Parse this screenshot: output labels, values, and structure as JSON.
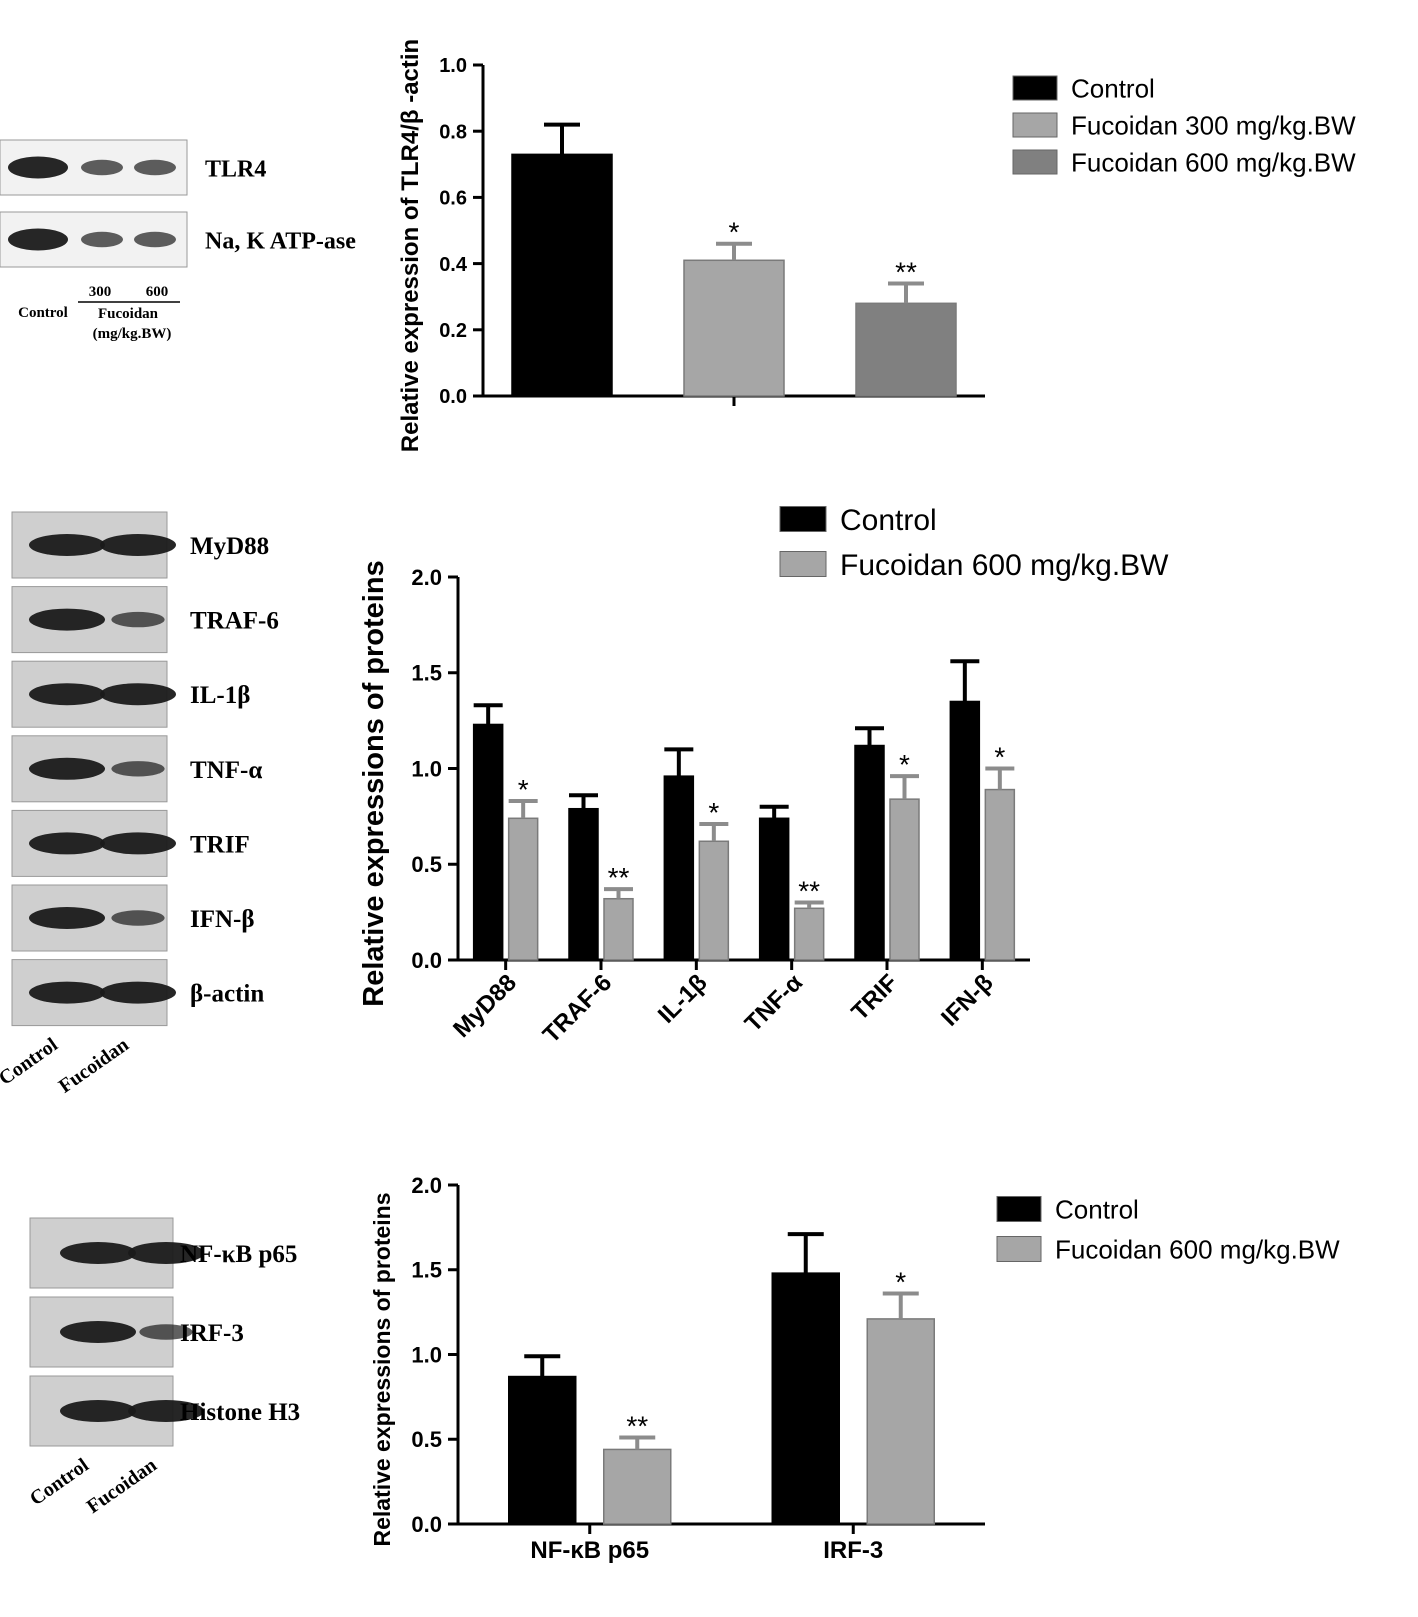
{
  "chart_data": [
    {
      "type": "bar",
      "ylabel": "Relative expression of TLR4/β -actin",
      "categories": [
        null
      ],
      "series": [
        {
          "name": "Control",
          "color": "#000000",
          "values": [
            0.73
          ],
          "errors": [
            0.09
          ],
          "significance": [
            null
          ]
        },
        {
          "name": "Fucoidan 300 mg/kg.BW",
          "color": "#a6a6a6",
          "values": [
            0.41
          ],
          "errors": [
            0.05
          ],
          "significance": [
            "*"
          ]
        },
        {
          "name": "Fucoidan 600 mg/kg.BW",
          "color": "#808080",
          "values": [
            0.28
          ],
          "errors": [
            0.06
          ],
          "significance": [
            "**"
          ]
        }
      ],
      "ylim": [
        0,
        1.0
      ],
      "yticks": [
        {
          "value": 0,
          "label": "0.0"
        },
        0.2,
        0.4,
        0.6,
        0.8,
        {
          "value": 1.0,
          "label": "1.0"
        }
      ]
    },
    {
      "type": "bar",
      "ylabel": "Relative expressions of proteins",
      "categories": [
        "MyD88",
        "TRAF-6",
        "IL-1β",
        "TNF-α",
        "TRIF",
        "IFN-β"
      ],
      "series": [
        {
          "name": "Control",
          "color": "#000000",
          "values": [
            1.23,
            0.79,
            0.96,
            0.74,
            1.12,
            1.35
          ],
          "errors": [
            0.1,
            0.07,
            0.14,
            0.06,
            0.09,
            0.21
          ],
          "significance": [
            null,
            null,
            null,
            null,
            null,
            null
          ]
        },
        {
          "name": "Fucoidan 600 mg/kg.BW",
          "color": "#a6a6a6",
          "values": [
            0.74,
            0.32,
            0.62,
            0.27,
            0.84,
            0.89
          ],
          "errors": [
            0.09,
            0.05,
            0.09,
            0.03,
            0.12,
            0.11
          ],
          "significance": [
            "*",
            "**",
            "*",
            "**",
            "*",
            "*"
          ]
        }
      ],
      "ylim": [
        0,
        2.0
      ],
      "yticks": [
        {
          "value": 0,
          "label": "0.0"
        },
        0.5,
        {
          "value": 1.0,
          "label": "1.0"
        },
        1.5,
        {
          "value": 2.0,
          "label": "2.0"
        }
      ]
    },
    {
      "type": "bar",
      "ylabel": "Relative expressions of proteins",
      "categories": [
        "NF-κB p65",
        "IRF-3"
      ],
      "series": [
        {
          "name": "Control",
          "color": "#000000",
          "values": [
            0.87,
            1.48
          ],
          "errors": [
            0.12,
            0.23
          ],
          "significance": [
            null,
            null
          ]
        },
        {
          "name": "Fucoidan 600 mg/kg.BW",
          "color": "#a6a6a6",
          "values": [
            0.44,
            1.21
          ],
          "errors": [
            0.07,
            0.15
          ],
          "significance": [
            "**",
            "*"
          ]
        }
      ],
      "ylim": [
        0,
        2.0
      ],
      "yticks": [
        {
          "value": 0,
          "label": "0.0"
        },
        0.5,
        {
          "value": 1.0,
          "label": "1.0"
        },
        1.5,
        {
          "value": 2.0,
          "label": "2.0"
        }
      ]
    }
  ],
  "blots": [
    {
      "bands": [
        "TLR4",
        "Na, K ATP-ase"
      ],
      "lane_labels": [
        "Control"
      ],
      "dose_labels": [
        "300",
        "600"
      ],
      "group_label": "Fucoidan",
      "unit_label": "(mg/kg.BW)"
    },
    {
      "bands": [
        "MyD88",
        "TRAF-6",
        "IL-1β",
        "TNF-α",
        "TRIF",
        "IFN-β",
        "β-actin"
      ],
      "lane_labels": [
        "Control",
        "Fucoidan"
      ]
    },
    {
      "bands": [
        "NF-κB p65",
        "IRF-3",
        "Histone H3"
      ],
      "lane_labels": [
        "Control",
        "Fucoidan"
      ]
    }
  ]
}
